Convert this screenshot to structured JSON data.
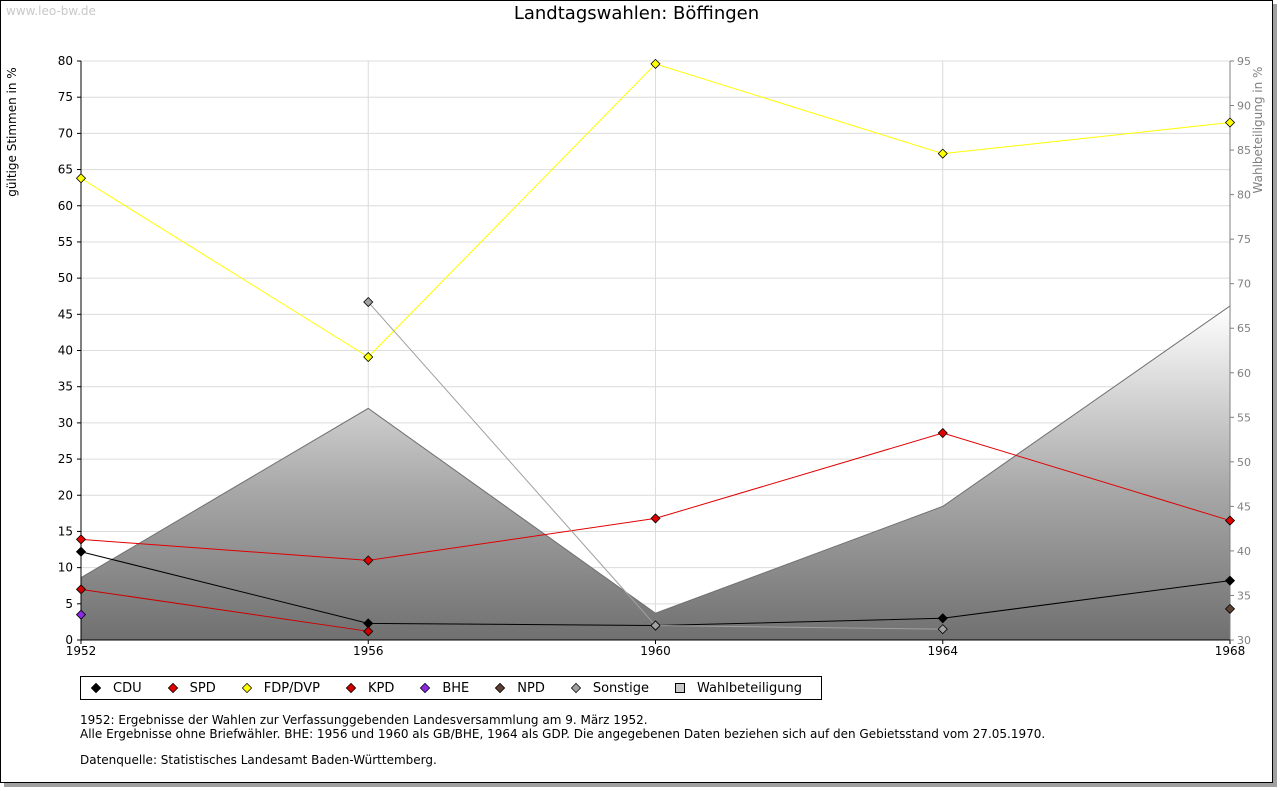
{
  "watermark": "www.leo-bw.de",
  "chart_data": {
    "type": "line",
    "title": "Landtagswahlen: Böffingen",
    "ylabel": "gültige Stimmen in %",
    "y2label": "Wahlbeteiligung in %",
    "xlabel": "",
    "x": [
      1952,
      1956,
      1960,
      1964,
      1968
    ],
    "ylim": [
      0,
      80
    ],
    "y2lim": [
      30,
      95
    ],
    "yticks": [
      0,
      5,
      10,
      15,
      20,
      25,
      30,
      35,
      40,
      45,
      50,
      55,
      60,
      65,
      70,
      75,
      80
    ],
    "y2ticks": [
      30,
      35,
      40,
      45,
      50,
      55,
      60,
      65,
      70,
      75,
      80,
      85,
      90,
      95
    ],
    "series": [
      {
        "name": "CDU",
        "color": "#000000",
        "values": [
          12.2,
          2.3,
          2.0,
          3.0,
          8.2
        ]
      },
      {
        "name": "SPD",
        "color": "#e00000",
        "values": [
          13.9,
          11.0,
          16.8,
          28.6,
          16.5
        ]
      },
      {
        "name": "FDP/DVP",
        "color": "#ffff00",
        "values": [
          63.8,
          39.1,
          79.6,
          67.2,
          71.5
        ]
      },
      {
        "name": "KPD",
        "color": "#cc0000",
        "values": [
          7.0,
          1.2,
          null,
          null,
          null
        ]
      },
      {
        "name": "BHE",
        "color": "#8a2be2",
        "values": [
          3.5,
          null,
          null,
          null,
          null
        ]
      },
      {
        "name": "NPD",
        "color": "#5c4033",
        "values": [
          null,
          null,
          null,
          null,
          4.3
        ]
      },
      {
        "name": "Sonstige",
        "color": "#a0a0a0",
        "values": [
          null,
          46.7,
          2.0,
          1.5,
          null
        ]
      }
    ],
    "area": {
      "name": "Wahlbeteiligung",
      "axis": "y2",
      "values": [
        37.0,
        56.0,
        33.0,
        45.0,
        67.5
      ]
    },
    "legend_position": "bottom-left"
  },
  "legend": [
    "CDU",
    "SPD",
    "FDP/DVP",
    "KPD",
    "BHE",
    "NPD",
    "Sonstige",
    "Wahlbeteiligung"
  ],
  "notes": {
    "line1": "1952: Ergebnisse der Wahlen zur Verfassunggebenden Landesversammlung am 9. März 1952.",
    "line2": "Alle Ergebnisse ohne Briefwähler. BHE: 1956 und 1960 als GB/BHE, 1964 als GDP. Die angegebenen Daten beziehen sich auf den Gebietsstand vom 27.05.1970.",
    "source": "Datenquelle: Statistisches Landesamt Baden-Württemberg."
  }
}
